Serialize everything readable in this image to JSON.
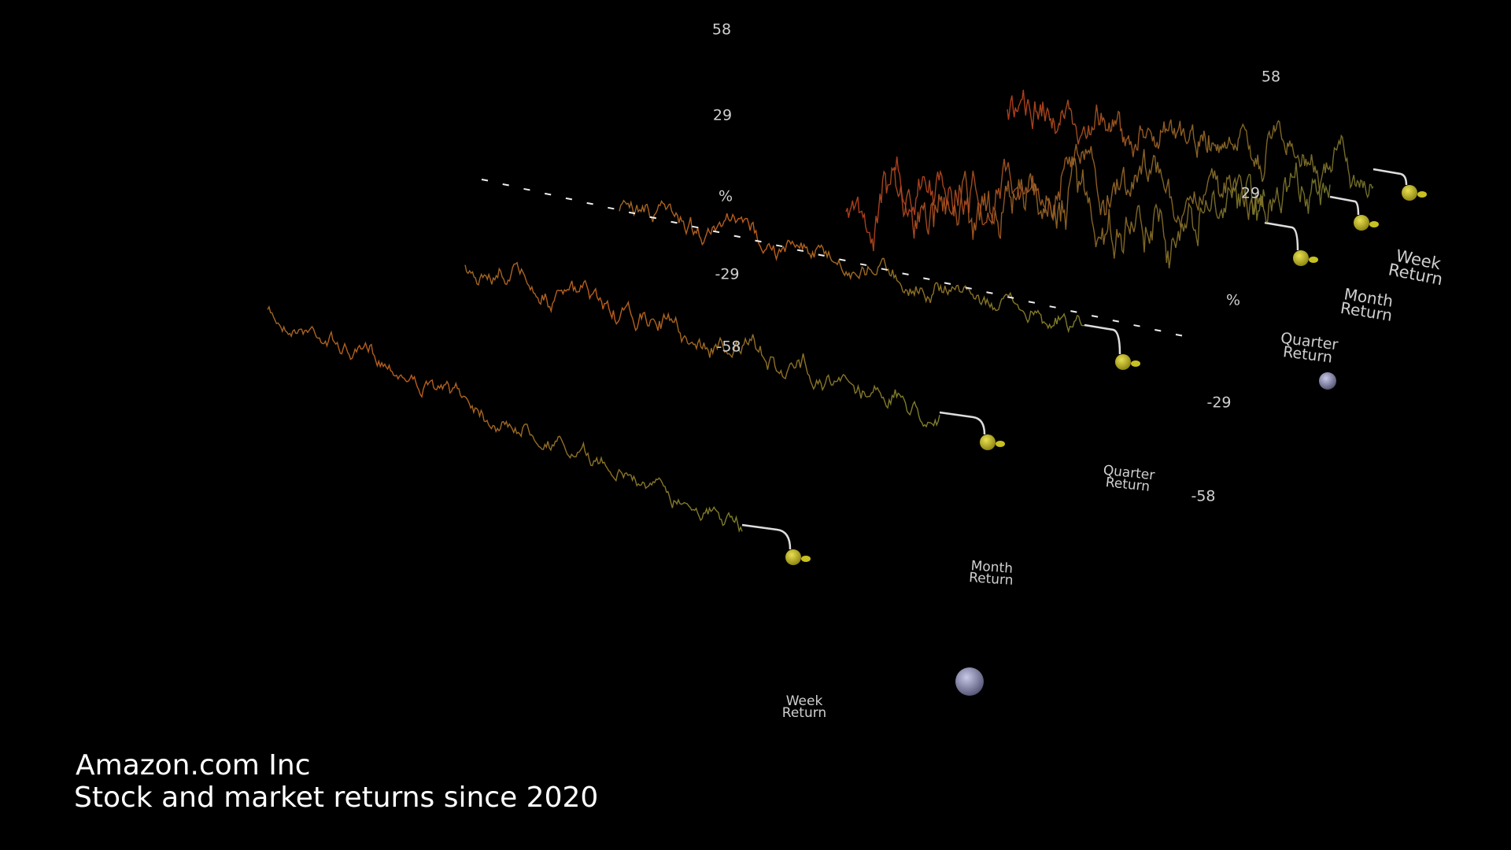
{
  "title": "Amazon.com Inc",
  "subtitle": "Stock and market returns since 2020",
  "front_axis": {
    "ticks": [
      "58",
      "29",
      "%",
      "-29",
      "-58"
    ]
  },
  "side_axis": {
    "ticks": [
      "58",
      "29",
      "%",
      "-29",
      "-58"
    ]
  },
  "front_labels": [
    {
      "line1": "Week",
      "line2": "Return"
    },
    {
      "line1": "Month",
      "line2": "Return"
    },
    {
      "line1": "Quarter",
      "line2": "Return"
    }
  ],
  "side_labels": [
    {
      "line1": "Quarter",
      "line2": "Return"
    },
    {
      "line1": "Month",
      "line2": "Return"
    },
    {
      "line1": "Week",
      "line2": "Return"
    }
  ]
}
